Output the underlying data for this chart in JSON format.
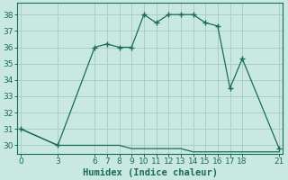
{
  "xlabel": "Humidex (Indice chaleur)",
  "bg_color": "#c8e8e0",
  "grid_color": "#aacfc8",
  "line_color": "#1a6b5a",
  "line1_x": [
    0,
    3,
    6,
    7,
    8,
    9,
    10,
    11,
    12,
    13,
    14,
    15,
    16,
    17,
    18,
    21
  ],
  "line1_y": [
    31,
    30,
    36,
    36.2,
    36,
    36,
    38,
    37.5,
    38,
    38,
    38,
    37.5,
    37.3,
    33.5,
    35.3,
    29.8
  ],
  "line2_x": [
    0,
    3,
    6,
    7,
    8,
    9,
    10,
    11,
    12,
    13,
    14,
    15,
    16,
    17,
    18,
    21
  ],
  "line2_y": [
    31,
    30,
    30,
    30,
    30,
    29.8,
    29.8,
    29.8,
    29.8,
    29.8,
    29.6,
    29.6,
    29.6,
    29.6,
    29.6,
    29.6
  ],
  "ylim": [
    29.5,
    38.7
  ],
  "xlim": [
    -0.3,
    21.3
  ],
  "yticks": [
    30,
    31,
    32,
    33,
    34,
    35,
    36,
    37,
    38
  ],
  "xticks": [
    0,
    3,
    6,
    7,
    8,
    9,
    10,
    11,
    12,
    13,
    14,
    15,
    16,
    17,
    18,
    21
  ],
  "tick_fontsize": 6.5,
  "label_fontsize": 7.5
}
